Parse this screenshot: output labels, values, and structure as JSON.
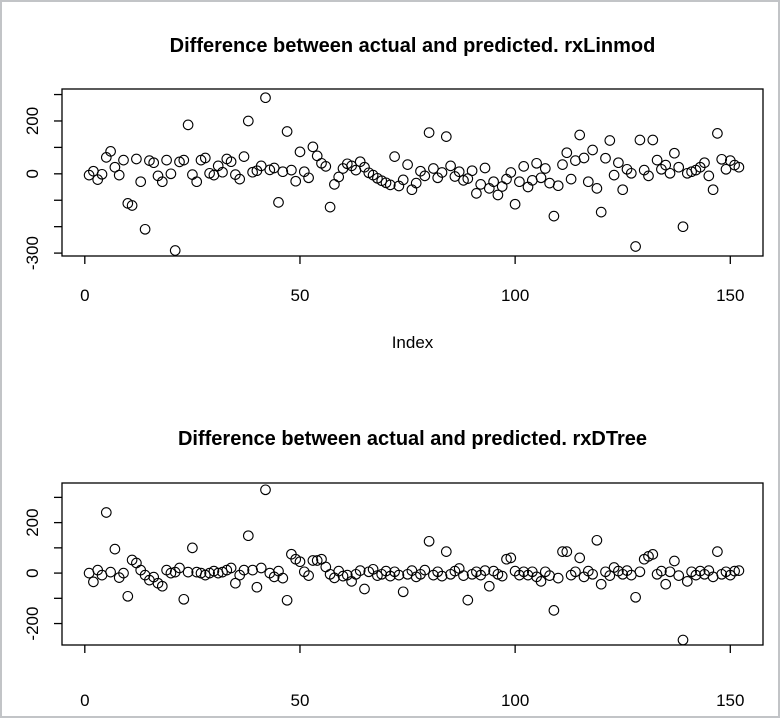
{
  "page": {
    "background": "#ffffff",
    "frame_border_color": "#c2c4c7",
    "plot_stroke_color": "#000000",
    "marker": "open-circle"
  },
  "chart_data": [
    {
      "type": "scatter",
      "title": "Difference between actual and predicted. rxLinmod",
      "xlabel": "Index",
      "ylabel": "",
      "marker": "open-circle",
      "legend": "none",
      "grid": false,
      "n_points": 152,
      "x_start": 1,
      "xlim": [
        -5.3,
        157.6
      ],
      "ylim": [
        -311,
        321
      ],
      "x_ticks": [
        {
          "v": 0,
          "label": "0"
        },
        {
          "v": 50,
          "label": "50"
        },
        {
          "v": 100,
          "label": "100"
        },
        {
          "v": 150,
          "label": "150"
        }
      ],
      "y_ticks": [
        {
          "v": 300,
          "label": ""
        },
        {
          "v": 200,
          "label": "200"
        },
        {
          "v": 100,
          "label": ""
        },
        {
          "v": 0,
          "label": "0"
        },
        {
          "v": -100,
          "label": ""
        },
        {
          "v": -200,
          "label": ""
        },
        {
          "v": -300,
          "label": "-300"
        }
      ],
      "values": [
        -5,
        10,
        -22,
        -2,
        62,
        85,
        25,
        -5,
        52,
        -112,
        -120,
        56,
        -30,
        -210,
        50,
        42,
        -8,
        -30,
        52,
        0,
        -290,
        45,
        52,
        185,
        -3,
        -30,
        52,
        60,
        2,
        -5,
        30,
        6,
        56,
        46,
        -3,
        -20,
        65,
        200,
        6,
        12,
        30,
        288,
        15,
        22,
        -108,
        8,
        160,
        14,
        -28,
        83,
        8,
        -15,
        102,
        68,
        40,
        28,
        -126,
        -40,
        -12,
        20,
        38,
        30,
        14,
        46,
        25,
        4,
        -5,
        -17,
        -26,
        -34,
        -42,
        65,
        -46,
        -23,
        35,
        -60,
        -35,
        10,
        -8,
        156,
        20,
        -15,
        5,
        141,
        30,
        -10,
        8,
        -25,
        -18,
        12,
        -74,
        -40,
        22,
        -55,
        -30,
        -80,
        -48,
        -20,
        5,
        -115,
        -30,
        28,
        -50,
        -25,
        40,
        -15,
        20,
        -35,
        -160,
        -45,
        35,
        80,
        -20,
        50,
        147,
        60,
        -30,
        90,
        -55,
        -145,
        59,
        126,
        -5,
        42,
        -60,
        17,
        2,
        -275,
        128,
        14,
        -8,
        128,
        52,
        17,
        33,
        2,
        78,
        25,
        -200,
        2,
        8,
        14,
        25,
        42,
        -8,
        -60,
        153,
        55,
        17,
        50,
        33,
        25
      ]
    },
    {
      "type": "scatter",
      "title": "Difference between actual and predicted. rxDTree",
      "xlabel": "",
      "ylabel": "",
      "marker": "open-circle",
      "legend": "none",
      "grid": false,
      "n_points": 152,
      "x_start": 1,
      "xlim": [
        -5.3,
        157.6
      ],
      "ylim": [
        -285,
        357
      ],
      "x_ticks": [
        {
          "v": 0,
          "label": "0"
        },
        {
          "v": 50,
          "label": "50"
        },
        {
          "v": 100,
          "label": "100"
        },
        {
          "v": 150,
          "label": "150"
        }
      ],
      "y_ticks": [
        {
          "v": 300,
          "label": ""
        },
        {
          "v": 200,
          "label": "200"
        },
        {
          "v": 100,
          "label": ""
        },
        {
          "v": 0,
          "label": "0"
        },
        {
          "v": -100,
          "label": ""
        },
        {
          "v": -200,
          "label": "-200"
        }
      ],
      "values": [
        0,
        -35,
        12,
        -8,
        240,
        4,
        95,
        -18,
        0,
        -92,
        52,
        40,
        12,
        -8,
        -28,
        -16,
        -40,
        -52,
        12,
        0,
        4,
        20,
        -104,
        4,
        100,
        4,
        0,
        -8,
        0,
        8,
        0,
        4,
        12,
        20,
        -40,
        -8,
        12,
        148,
        12,
        -56,
        20,
        330,
        0,
        -15,
        8,
        -20,
        -108,
        75,
        55,
        45,
        5,
        -10,
        50,
        50,
        55,
        24,
        -5,
        -19,
        8,
        -12,
        -8,
        -33,
        -5,
        10,
        -63,
        5,
        15,
        -10,
        -5,
        8,
        -12,
        5,
        -8,
        -74,
        -5,
        10,
        -15,
        -5,
        12,
        126,
        -8,
        5,
        -12,
        85,
        -5,
        8,
        18,
        -10,
        -107,
        -5,
        5,
        -8,
        10,
        -52,
        8,
        -5,
        -12,
        55,
        60,
        8,
        -8,
        5,
        -8,
        5,
        -15,
        -33,
        5,
        -10,
        -148,
        -20,
        85,
        85,
        -8,
        5,
        60,
        -15,
        8,
        -5,
        130,
        -44,
        5,
        -10,
        22,
        8,
        -5,
        10,
        -8,
        -96,
        5,
        55,
        66,
        74,
        -5,
        8,
        -44,
        5,
        48,
        -10,
        -265,
        -33,
        5,
        -8,
        8,
        -5,
        10,
        -15,
        85,
        -5,
        5,
        -8,
        8,
        10
      ]
    }
  ]
}
